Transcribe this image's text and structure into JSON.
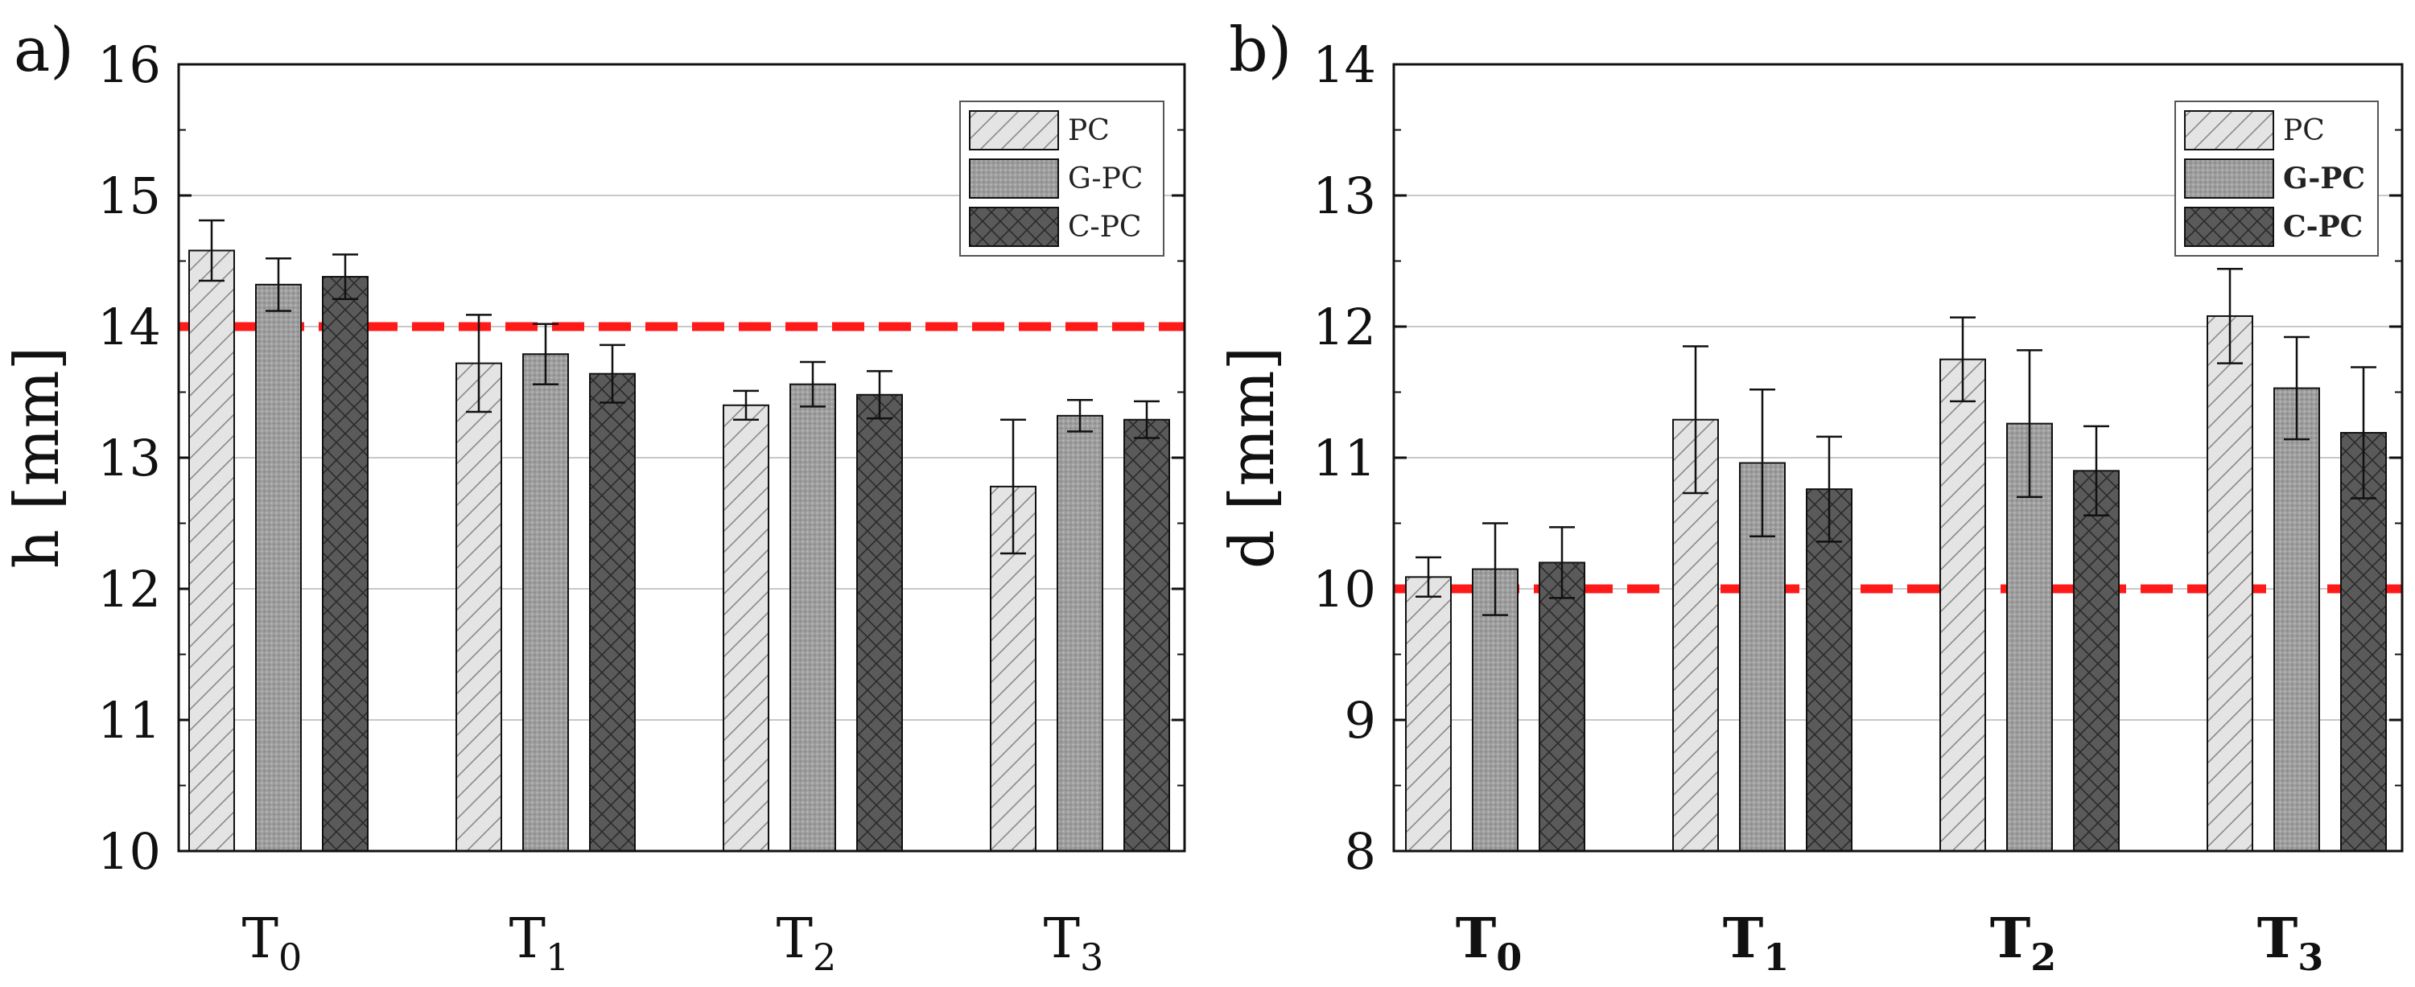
{
  "chart_data": [
    {
      "type": "bar",
      "panel_label": "a)",
      "ylabel": "h [mm]",
      "ylim": [
        10,
        16
      ],
      "yticks": [
        "10",
        "11",
        "12",
        "13",
        "14",
        "15",
        "16"
      ],
      "grid": true,
      "categories": [
        {
          "main": "T",
          "sub": "0"
        },
        {
          "main": "T",
          "sub": "1"
        },
        {
          "main": "T",
          "sub": "2"
        },
        {
          "main": "T",
          "sub": "3"
        }
      ],
      "legend": {
        "position": "top-right",
        "bold": false
      },
      "reference_line": 14.0,
      "series": [
        {
          "name": "PC",
          "values": [
            14.58,
            13.72,
            13.4,
            12.78
          ],
          "errors": [
            0.23,
            0.37,
            0.11,
            0.51
          ]
        },
        {
          "name": "G-PC",
          "values": [
            14.32,
            13.79,
            13.56,
            13.32
          ],
          "errors": [
            0.2,
            0.23,
            0.17,
            0.12
          ]
        },
        {
          "name": "C-PC",
          "values": [
            14.38,
            13.64,
            13.48,
            13.29
          ],
          "errors": [
            0.17,
            0.22,
            0.18,
            0.14
          ]
        }
      ]
    },
    {
      "type": "bar",
      "panel_label": "b)",
      "ylabel": "d [mm]",
      "ylim": [
        8,
        14
      ],
      "yticks": [
        "8",
        "9",
        "10",
        "11",
        "12",
        "13",
        "14"
      ],
      "grid": true,
      "categories": [
        {
          "main": "T",
          "sub": "0"
        },
        {
          "main": "T",
          "sub": "1"
        },
        {
          "main": "T",
          "sub": "2"
        },
        {
          "main": "T",
          "sub": "3"
        }
      ],
      "legend": {
        "position": "top-right",
        "bold": true
      },
      "reference_line": 10.0,
      "series": [
        {
          "name": "PC",
          "values": [
            10.09,
            11.29,
            11.75,
            12.08
          ],
          "errors": [
            0.15,
            0.56,
            0.32,
            0.36
          ]
        },
        {
          "name": "G-PC",
          "values": [
            10.15,
            10.96,
            11.26,
            11.53
          ],
          "errors": [
            0.35,
            0.56,
            0.56,
            0.39
          ]
        },
        {
          "name": "C-PC",
          "values": [
            10.2,
            10.76,
            10.9,
            11.19
          ],
          "errors": [
            0.27,
            0.4,
            0.34,
            0.5
          ]
        }
      ]
    }
  ],
  "colors": {
    "PC": "#e4e4e4",
    "G-PC": "#a4a4a4",
    "C-PC": "#5c5c5c",
    "reference": "#ff1a1a",
    "grid": "#c8c8c8"
  }
}
